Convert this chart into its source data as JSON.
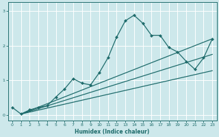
{
  "xlabel": "Humidex (Indice chaleur)",
  "background_color": "#cde8eb",
  "grid_color": "#ffffff",
  "line_color": "#1e6b6b",
  "xlim": [
    -0.5,
    23.5
  ],
  "ylim": [
    -0.15,
    3.25
  ],
  "xticks": [
    0,
    1,
    2,
    3,
    4,
    5,
    6,
    7,
    8,
    9,
    10,
    11,
    12,
    13,
    14,
    15,
    16,
    17,
    18,
    19,
    20,
    21,
    22,
    23
  ],
  "yticks": [
    0,
    1,
    2,
    3
  ],
  "curve1_x": [
    0,
    1,
    2,
    3,
    4,
    5,
    6,
    7,
    8,
    9,
    10,
    11,
    12,
    13,
    14,
    15,
    16,
    17,
    18,
    19,
    20,
    21,
    22,
    23
  ],
  "curve1_y": [
    0.22,
    0.03,
    0.15,
    0.22,
    0.27,
    0.52,
    0.75,
    1.05,
    0.92,
    0.87,
    1.22,
    1.65,
    2.25,
    2.72,
    2.88,
    2.65,
    2.3,
    2.3,
    1.95,
    1.82,
    1.55,
    1.32,
    1.65,
    2.2
  ],
  "curve2_x": [
    1,
    23
  ],
  "curve2_y": [
    0.03,
    2.2
  ],
  "curve3_x": [
    1,
    23
  ],
  "curve3_y": [
    0.03,
    1.75
  ],
  "curve4_x": [
    1,
    23
  ],
  "curve4_y": [
    0.03,
    1.28
  ],
  "marker_x": [
    0,
    1,
    2,
    3,
    4,
    5,
    6,
    7,
    8,
    9,
    10,
    11,
    12,
    13,
    14,
    15,
    16,
    17,
    18,
    19,
    20,
    21,
    22,
    23
  ],
  "marker_y": [
    0.22,
    0.03,
    0.15,
    0.22,
    0.27,
    0.52,
    0.75,
    1.05,
    0.92,
    0.87,
    1.22,
    1.65,
    2.25,
    2.72,
    2.88,
    2.65,
    2.3,
    2.3,
    1.95,
    1.82,
    1.55,
    1.32,
    1.65,
    2.2
  ]
}
